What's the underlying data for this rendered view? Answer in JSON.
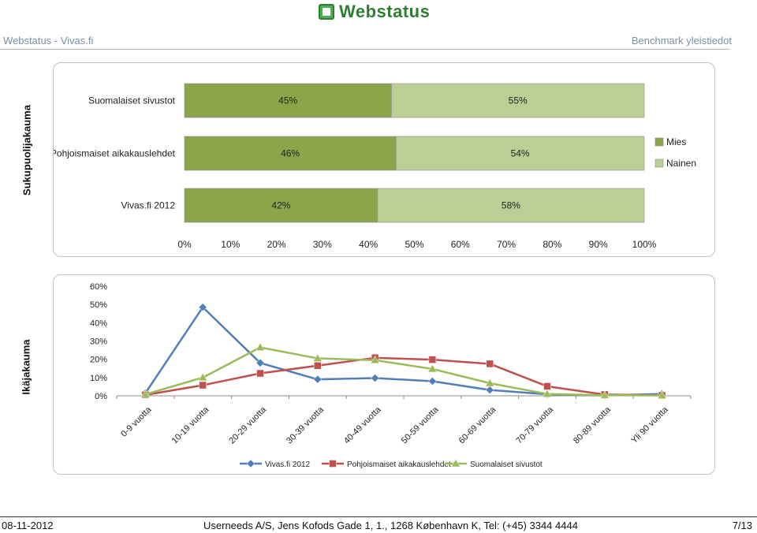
{
  "header": {
    "logo_text": "Webstatus",
    "left_title": "Webstatus - Vivas.fi",
    "right_title": "Benchmark yleistiedot"
  },
  "colors": {
    "mies": "#8aa54a",
    "nainen": "#b9cf96",
    "vivas": "#4f7fb8",
    "pohjoismaiset": "#c0504d",
    "suomalaiset": "#9bbb59"
  },
  "chart_data": [
    {
      "type": "bar",
      "orientation": "horizontal",
      "stacked": true,
      "side_label": "Sukupuolijakauma",
      "categories": [
        "Suomalaiset sivustot",
        "Pohjoismaiset aikakauslehdet",
        "Vivas.fi 2012"
      ],
      "series": [
        {
          "name": "Mies",
          "values": [
            45,
            46,
            42
          ],
          "labels": [
            "45%",
            "46%",
            "42%"
          ]
        },
        {
          "name": "Nainen",
          "values": [
            55,
            54,
            58
          ],
          "labels": [
            "55%",
            "54%",
            "58%"
          ]
        }
      ],
      "x_ticks": [
        "0%",
        "10%",
        "20%",
        "30%",
        "40%",
        "50%",
        "60%",
        "70%",
        "80%",
        "90%",
        "100%"
      ],
      "xlim": [
        0,
        100
      ],
      "legend": "right"
    },
    {
      "type": "line",
      "side_label": "Ikäjakauma",
      "categories": [
        "0-9 vuotta",
        "10-19 vuotta",
        "20-29 vuotta",
        "30-39 vuotta",
        "40-49 vuotta",
        "50-59 vuotta",
        "60-69 vuotta",
        "70-79 vuotta",
        "80-89 vuotta",
        "Yli 90 vuotta"
      ],
      "series": [
        {
          "name": "Vivas.fi 2012",
          "marker": "diamond",
          "values": [
            1.5,
            48.5,
            18,
            9,
            9.7,
            8,
            3.2,
            0.8,
            0.2,
            1
          ]
        },
        {
          "name": "Pohjoismaiset aikakauslehdet",
          "marker": "square",
          "values": [
            0.5,
            5.8,
            12.3,
            16.5,
            20.8,
            19.8,
            17.5,
            5.2,
            0.7,
            0.2
          ]
        },
        {
          "name": "Suomalaiset sivustot",
          "marker": "triangle",
          "values": [
            0.8,
            10,
            26.5,
            20.5,
            19.5,
            14.7,
            6.9,
            1,
            0.3,
            0.2
          ]
        }
      ],
      "y_ticks": [
        "0%",
        "10%",
        "20%",
        "30%",
        "40%",
        "50%",
        "60%"
      ],
      "ylim": [
        0,
        60
      ],
      "legend": "bottom"
    }
  ],
  "footer": {
    "date": "08-11-2012",
    "address": "Userneeds A/S, Jens Kofods Gade 1, 1., 1268 København K, Tel: (+45) 3344 4444",
    "page": "7/13"
  }
}
